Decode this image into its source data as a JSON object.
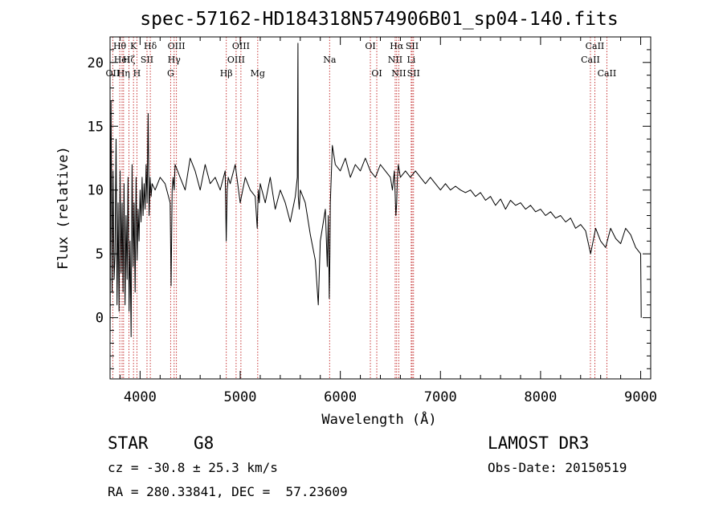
{
  "chart_data": {
    "type": "line",
    "title": "spec-57162-HD184318N574906B01_sp04-140.fits",
    "xlabel": "Wavelength (Å)",
    "ylabel": "Flux (relative)",
    "xlim": [
      3700,
      9100
    ],
    "ylim": [
      -4.8,
      22
    ],
    "xticks": [
      4000,
      5000,
      6000,
      7000,
      8000,
      9000
    ],
    "yticks": [
      0,
      5,
      10,
      15,
      20
    ],
    "xtick_labels": [
      "4000",
      "5000",
      "6000",
      "7000",
      "8000",
      "9000"
    ],
    "ytick_labels": [
      "0",
      "5",
      "10",
      "15",
      "20"
    ],
    "series": [
      {
        "name": "flux",
        "x": [
          3700,
          3710,
          3720,
          3730,
          3740,
          3750,
          3760,
          3770,
          3780,
          3790,
          3800,
          3810,
          3820,
          3830,
          3840,
          3850,
          3860,
          3870,
          3880,
          3890,
          3900,
          3910,
          3920,
          3930,
          3940,
          3950,
          3960,
          3970,
          3980,
          3990,
          4000,
          4010,
          4020,
          4030,
          4040,
          4050,
          4060,
          4070,
          4080,
          4090,
          4100,
          4110,
          4120,
          4150,
          4200,
          4250,
          4300,
          4310,
          4320,
          4330,
          4340,
          4350,
          4400,
          4450,
          4500,
          4550,
          4600,
          4650,
          4700,
          4750,
          4800,
          4850,
          4860,
          4870,
          4880,
          4900,
          4950,
          5000,
          5050,
          5100,
          5150,
          5170,
          5180,
          5190,
          5200,
          5250,
          5300,
          5350,
          5400,
          5450,
          5500,
          5550,
          5570,
          5577,
          5580,
          5590,
          5600,
          5650,
          5700,
          5750,
          5780,
          5800,
          5830,
          5850,
          5870,
          5880,
          5890,
          5896,
          5900,
          5920,
          5950,
          6000,
          6050,
          6100,
          6150,
          6200,
          6250,
          6300,
          6350,
          6400,
          6450,
          6500,
          6520,
          6540,
          6555,
          6563,
          6570,
          6580,
          6600,
          6650,
          6700,
          6750,
          6800,
          6850,
          6900,
          6950,
          7000,
          7050,
          7100,
          7150,
          7200,
          7250,
          7300,
          7350,
          7400,
          7450,
          7500,
          7550,
          7600,
          7650,
          7700,
          7750,
          7800,
          7850,
          7900,
          7950,
          8000,
          8050,
          8100,
          8150,
          8200,
          8250,
          8300,
          8350,
          8400,
          8450,
          8500,
          8550,
          8600,
          8650,
          8700,
          8750,
          8800,
          8850,
          8900,
          8950,
          9000,
          9005
        ],
        "y": [
          -2.0,
          17.0,
          2.0,
          11.5,
          3.0,
          5.0,
          14.0,
          1.0,
          9.0,
          0.5,
          11.5,
          3.5,
          9.0,
          2.0,
          10.5,
          1.0,
          8.0,
          3.0,
          11.0,
          0.5,
          6.0,
          -1.5,
          12.0,
          4.0,
          9.0,
          2.0,
          11.0,
          4.5,
          8.5,
          6.0,
          10.0,
          7.5,
          11.0,
          8.0,
          10.5,
          8.5,
          12.0,
          9.0,
          16.0,
          8.0,
          11.0,
          9.5,
          10.5,
          10.0,
          11.0,
          10.5,
          9.0,
          2.5,
          10.0,
          11.0,
          10.0,
          12.0,
          11.0,
          10.0,
          12.5,
          11.5,
          10.0,
          12.0,
          10.5,
          11.0,
          10.0,
          11.5,
          6.0,
          10.0,
          11.0,
          10.5,
          12.0,
          9.0,
          11.0,
          10.0,
          9.5,
          7.0,
          10.0,
          9.0,
          10.5,
          9.0,
          11.0,
          8.5,
          10.0,
          9.0,
          7.5,
          9.5,
          11.0,
          21.5,
          9.5,
          8.5,
          10.0,
          9.0,
          6.5,
          4.5,
          1.0,
          6.0,
          7.5,
          8.5,
          4.0,
          8.0,
          1.5,
          5.0,
          9.0,
          13.5,
          12.0,
          11.5,
          12.5,
          11.0,
          12.0,
          11.5,
          12.5,
          11.5,
          11.0,
          12.0,
          11.5,
          11.0,
          10.0,
          11.5,
          8.0,
          9.0,
          11.0,
          12.0,
          11.0,
          11.5,
          11.0,
          11.5,
          11.0,
          10.5,
          11.0,
          10.5,
          10.0,
          10.5,
          10.0,
          10.3,
          10.0,
          9.8,
          10.0,
          9.5,
          9.8,
          9.2,
          9.5,
          8.8,
          9.3,
          8.5,
          9.2,
          8.8,
          9.0,
          8.5,
          8.8,
          8.3,
          8.5,
          8.0,
          8.3,
          7.8,
          8.0,
          7.5,
          7.8,
          7.0,
          7.3,
          6.8,
          5.0,
          7.0,
          6.0,
          5.5,
          7.0,
          6.2,
          5.8,
          7.0,
          6.5,
          5.5,
          5.0,
          0.0
        ]
      }
    ],
    "lines": [
      {
        "label": "Hθ",
        "wl": 3797,
        "row": 0
      },
      {
        "label": "OII",
        "wl": 3727,
        "row": 2
      },
      {
        "label": "HeI",
        "wl": 3820,
        "row": 1
      },
      {
        "label": "Hη",
        "wl": 3835,
        "row": 2
      },
      {
        "label": "Hζ",
        "wl": 3889,
        "row": 1
      },
      {
        "label": "K",
        "wl": 3934,
        "row": 0
      },
      {
        "label": "H",
        "wl": 3968,
        "row": 2
      },
      {
        "label": "SII",
        "wl": 4069,
        "row": 1
      },
      {
        "label": "Hδ",
        "wl": 4102,
        "row": 0
      },
      {
        "label": "OIII",
        "wl": 4363,
        "row": 0
      },
      {
        "label": "Hγ",
        "wl": 4340,
        "row": 1
      },
      {
        "label": "G",
        "wl": 4305,
        "row": 2
      },
      {
        "label": "Hβ",
        "wl": 4861,
        "row": 2
      },
      {
        "label": "OIII",
        "wl": 5007,
        "row": 0
      },
      {
        "label": "OIII",
        "wl": 4959,
        "row": 1
      },
      {
        "label": "Mg",
        "wl": 5175,
        "row": 2
      },
      {
        "label": "Na",
        "wl": 5893,
        "row": 1
      },
      {
        "label": "OI",
        "wl": 6300,
        "row": 0
      },
      {
        "label": "OI",
        "wl": 6364,
        "row": 2
      },
      {
        "label": "Hα",
        "wl": 6563,
        "row": 0
      },
      {
        "label": "NII",
        "wl": 6548,
        "row": 1
      },
      {
        "label": "NII",
        "wl": 6584,
        "row": 2
      },
      {
        "label": "SII",
        "wl": 6717,
        "row": 0
      },
      {
        "label": "Li",
        "wl": 6708,
        "row": 1
      },
      {
        "label": "SII",
        "wl": 6731,
        "row": 2
      },
      {
        "label": "CaII",
        "wl": 8542,
        "row": 0
      },
      {
        "label": "CaII",
        "wl": 8498,
        "row": 1
      },
      {
        "label": "CaII",
        "wl": 8662,
        "row": 2
      }
    ]
  },
  "footer": {
    "object_type": "STAR",
    "spectral_class": "G8",
    "survey": "LAMOST DR3",
    "redshift": "cz = -30.8 ± 25.3 km/s",
    "obs_date": "Obs-Date: 20150519",
    "coords": "RA = 280.33841, DEC =  57.23609"
  },
  "colors": {
    "spectrum": "#000000",
    "line_marker": "#c02020"
  }
}
